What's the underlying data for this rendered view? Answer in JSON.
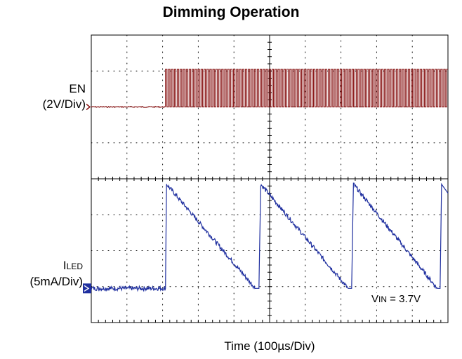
{
  "chart_data": {
    "type": "line",
    "title": "Dimming Operation",
    "xlabel": "Time (100µs/Div)",
    "x_unit": "µs",
    "xlim": [
      0,
      1000
    ],
    "y_divisions": 8,
    "grid": true,
    "series": [
      {
        "name": "EN",
        "label_main": "EN",
        "label_scale": "(2V/Div)",
        "color": "#8b1a1a",
        "scale_per_div": "2V",
        "low_level_div": 6,
        "high_level_div": 7.05,
        "pwm_start_us": 208,
        "pwm_period_us": 8.3,
        "pwm_duty": 0.5
      },
      {
        "name": "ILED",
        "label_main": "I",
        "label_sub": "LED",
        "label_scale": "(5mA/Div)",
        "color": "#1f2f9f",
        "scale_per_div": "5mA",
        "ramp_points": [
          [
            0,
            0.95
          ],
          [
            208,
            0.95
          ],
          [
            211,
            3.85
          ],
          [
            460,
            0.95
          ],
          [
            470,
            0.95
          ],
          [
            475,
            3.85
          ],
          [
            720,
            0.95
          ],
          [
            730,
            0.95
          ],
          [
            735,
            3.85
          ],
          [
            970,
            0.95
          ],
          [
            978,
            0.95
          ],
          [
            982,
            3.85
          ],
          [
            1000,
            3.6
          ]
        ]
      }
    ],
    "annotation": {
      "v": "V",
      "sub": "IN",
      "text": " = 3.7V"
    }
  }
}
